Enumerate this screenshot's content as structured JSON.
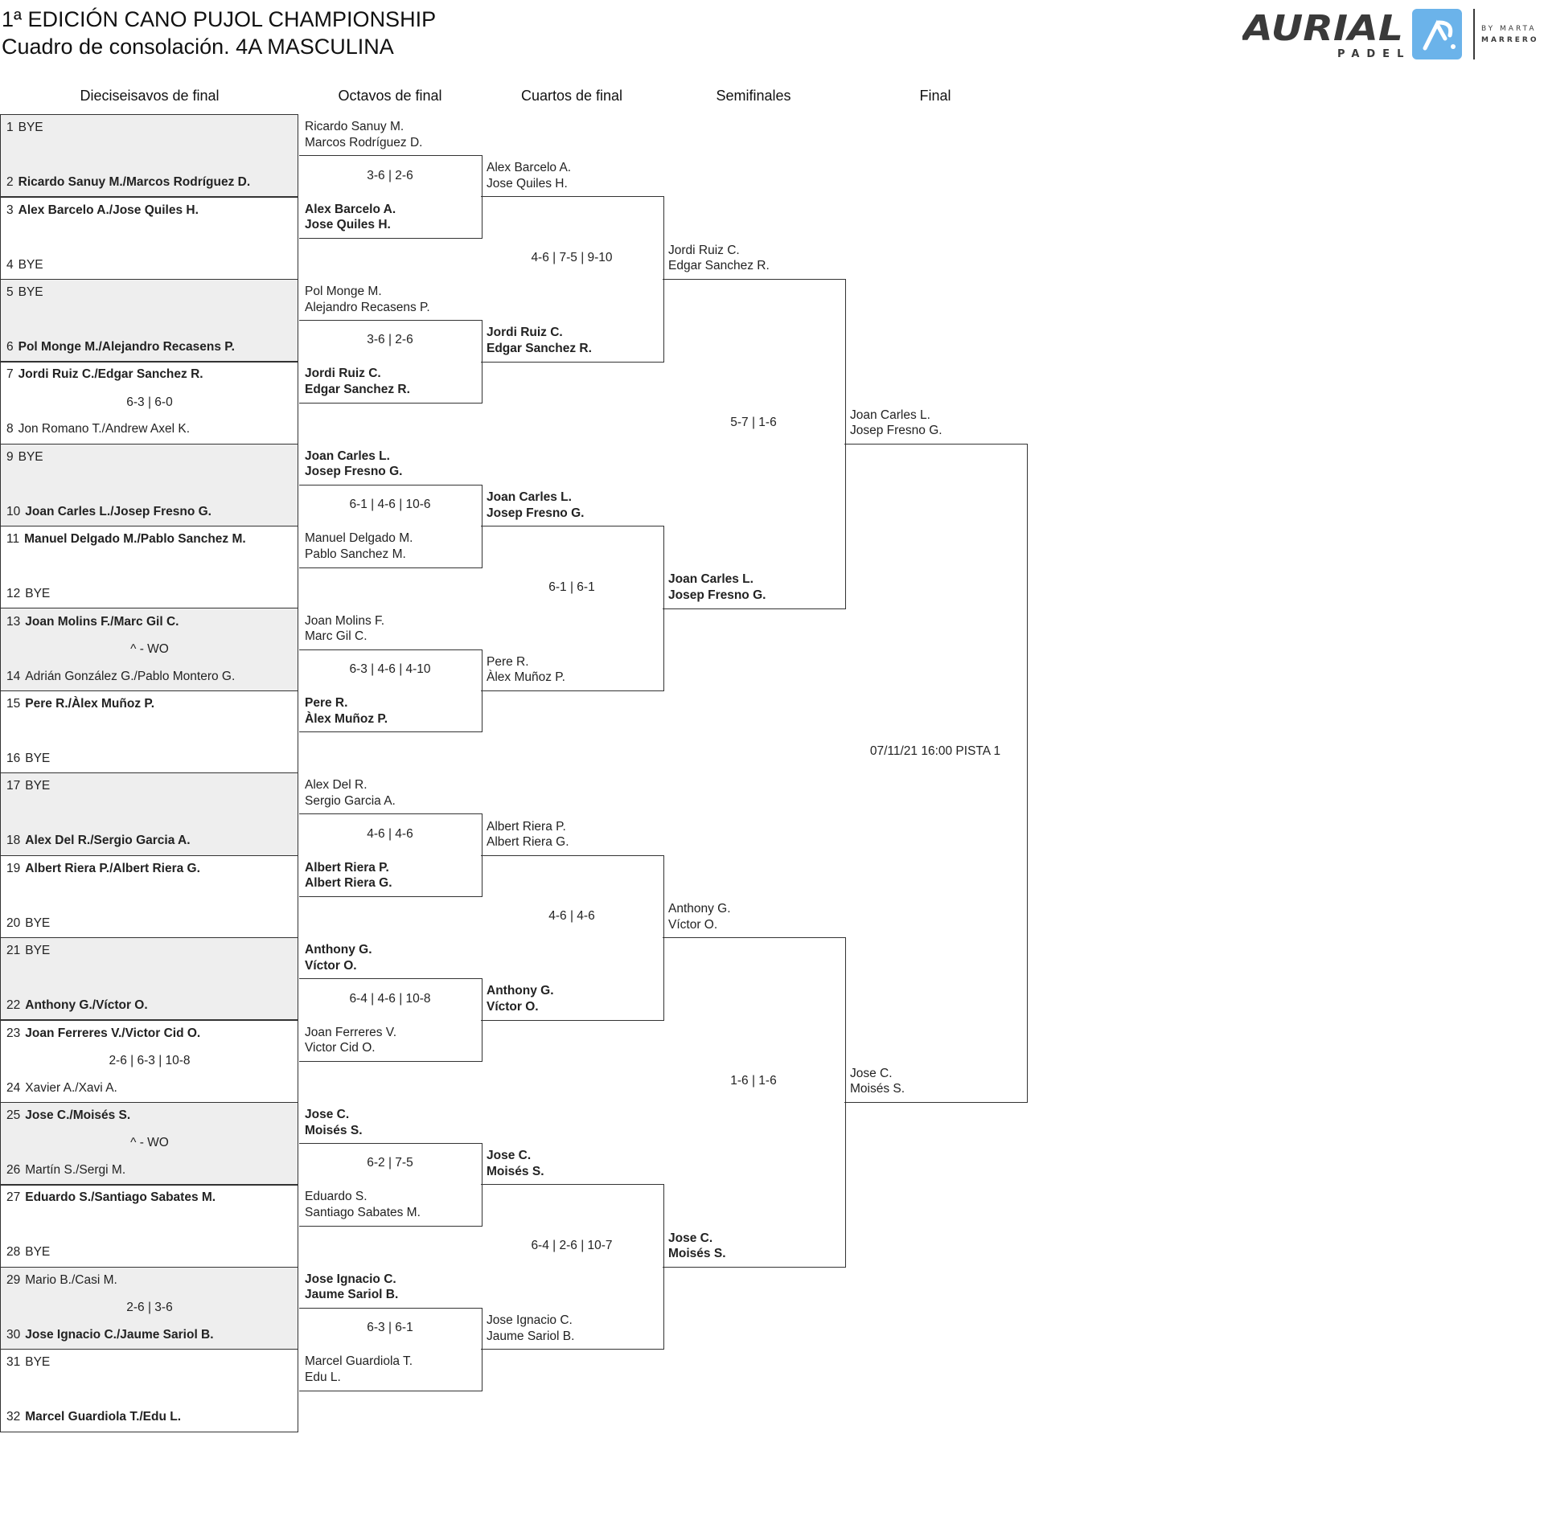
{
  "header": {
    "title": "1ª EDICIÓN CANO PUJOL CHAMPIONSHIP",
    "subtitle": "Cuadro de consolación. 4A MASCULINA"
  },
  "logo": {
    "brand": "AURIAL",
    "sub": "PADEL",
    "tagline1": "BY MARTA",
    "tagline2": "MARRERO",
    "accent": "#6bb3ea"
  },
  "rounds": [
    "Dieciseisavos de final",
    "Octavos de final",
    "Cuartos de final",
    "Semifinales",
    "Final"
  ],
  "round1": [
    {
      "n1": "1",
      "t1": "BYE",
      "w1": false,
      "n2": "2",
      "t2": "Ricardo Sanuy M./Marcos Rodríguez D.",
      "w2": true,
      "score": ""
    },
    {
      "n1": "3",
      "t1": "Alex Barcelo A./Jose Quiles H.",
      "w1": true,
      "n2": "4",
      "t2": "BYE",
      "w2": false,
      "score": ""
    },
    {
      "n1": "5",
      "t1": "BYE",
      "w1": false,
      "n2": "6",
      "t2": "Pol Monge M./Alejandro Recasens P.",
      "w2": true,
      "score": ""
    },
    {
      "n1": "7",
      "t1": "Jordi Ruiz C./Edgar Sanchez R.",
      "w1": true,
      "n2": "8",
      "t2": "Jon Romano T./Andrew Axel K.",
      "w2": false,
      "score": "6-3 | 6-0"
    },
    {
      "n1": "9",
      "t1": "BYE",
      "w1": false,
      "n2": "10",
      "t2": "Joan Carles L./Josep Fresno G.",
      "w2": true,
      "score": ""
    },
    {
      "n1": "11",
      "t1": "Manuel Delgado M./Pablo Sanchez M.",
      "w1": true,
      "n2": "12",
      "t2": "BYE",
      "w2": false,
      "score": ""
    },
    {
      "n1": "13",
      "t1": "Joan Molins F./Marc Gil C.",
      "w1": true,
      "n2": "14",
      "t2": "Adrián González G./Pablo Montero G.",
      "w2": false,
      "score": "^ - WO"
    },
    {
      "n1": "15",
      "t1": "Pere R./Àlex Muñoz P.",
      "w1": true,
      "n2": "16",
      "t2": "BYE",
      "w2": false,
      "score": ""
    },
    {
      "n1": "17",
      "t1": "BYE",
      "w1": false,
      "n2": "18",
      "t2": "Alex Del R./Sergio Garcia A.",
      "w2": true,
      "score": ""
    },
    {
      "n1": "19",
      "t1": "Albert Riera P./Albert Riera G.",
      "w1": true,
      "n2": "20",
      "t2": "BYE",
      "w2": false,
      "score": ""
    },
    {
      "n1": "21",
      "t1": "BYE",
      "w1": false,
      "n2": "22",
      "t2": "Anthony G./Víctor O.",
      "w2": true,
      "score": ""
    },
    {
      "n1": "23",
      "t1": "Joan Ferreres V./Victor Cid O.",
      "w1": true,
      "n2": "24",
      "t2": "Xavier A./Xavi A.",
      "w2": false,
      "score": "2-6 | 6-3 | 10-8"
    },
    {
      "n1": "25",
      "t1": "Jose C./Moisés S.",
      "w1": true,
      "n2": "26",
      "t2": "Martín S./Sergi M.",
      "w2": false,
      "score": "^ - WO"
    },
    {
      "n1": "27",
      "t1": "Eduardo S./Santiago Sabates M.",
      "w1": true,
      "n2": "28",
      "t2": "BYE",
      "w2": false,
      "score": ""
    },
    {
      "n1": "29",
      "t1": "Mario B./Casi M.",
      "w1": false,
      "n2": "30",
      "t2": "Jose Ignacio C./Jaume Sariol B.",
      "w2": true,
      "score": "2-6 | 3-6"
    },
    {
      "n1": "31",
      "t1": "BYE",
      "w1": false,
      "n2": "32",
      "t2": "Marcel Guardiola T./Edu L.",
      "w2": true,
      "score": ""
    }
  ],
  "later_rounds": [
    [
      {
        "top": [
          "Ricardo Sanuy M.",
          "Marcos Rodríguez D."
        ],
        "bottom": [
          "Alex Barcelo A.",
          "Jose Quiles H."
        ],
        "winner": "bottom",
        "score": "3-6 | 2-6"
      },
      {
        "top": [
          "Pol Monge M.",
          "Alejandro Recasens P."
        ],
        "bottom": [
          "Jordi Ruiz C.",
          "Edgar Sanchez R."
        ],
        "winner": "bottom",
        "score": "3-6 | 2-6"
      },
      {
        "top": [
          "Joan Carles L.",
          "Josep Fresno G."
        ],
        "bottom": [
          "Manuel Delgado M.",
          "Pablo Sanchez M."
        ],
        "winner": "top",
        "score": "6-1 | 4-6 | 10-6"
      },
      {
        "top": [
          "Joan Molins F.",
          "Marc Gil C."
        ],
        "bottom": [
          "Pere R.",
          "Àlex Muñoz P."
        ],
        "winner": "bottom",
        "score": "6-3 | 4-6 | 4-10"
      },
      {
        "top": [
          "Alex Del R.",
          "Sergio Garcia A."
        ],
        "bottom": [
          "Albert Riera P.",
          "Albert Riera G."
        ],
        "winner": "bottom",
        "score": "4-6 | 4-6"
      },
      {
        "top": [
          "Anthony G.",
          "Víctor O."
        ],
        "bottom": [
          "Joan Ferreres V.",
          "Victor Cid O."
        ],
        "winner": "top",
        "score": "6-4 | 4-6 | 10-8"
      },
      {
        "top": [
          "Jose C.",
          "Moisés S."
        ],
        "bottom": [
          "Eduardo S.",
          "Santiago Sabates M."
        ],
        "winner": "top",
        "score": "6-2 | 7-5"
      },
      {
        "top": [
          "Jose Ignacio C.",
          "Jaume Sariol B."
        ],
        "bottom": [
          "Marcel Guardiola T.",
          "Edu L."
        ],
        "winner": "top",
        "score": "6-3 | 6-1"
      }
    ],
    [
      {
        "top": [
          "Alex Barcelo A.",
          "Jose Quiles H."
        ],
        "bottom": [
          "Jordi Ruiz C.",
          "Edgar Sanchez R."
        ],
        "winner": "bottom",
        "score": "4-6 | 7-5 | 9-10"
      },
      {
        "top": [
          "Joan Carles L.",
          "Josep Fresno G."
        ],
        "bottom": [
          "Pere R.",
          "Àlex Muñoz P."
        ],
        "winner": "top",
        "score": "6-1 | 6-1"
      },
      {
        "top": [
          "Albert Riera P.",
          "Albert Riera G."
        ],
        "bottom": [
          "Anthony G.",
          "Víctor O."
        ],
        "winner": "bottom",
        "score": "4-6 | 4-6"
      },
      {
        "top": [
          "Jose C.",
          "Moisés S."
        ],
        "bottom": [
          "Jose Ignacio C.",
          "Jaume Sariol B."
        ],
        "winner": "top",
        "score": "6-4 | 2-6 | 10-7"
      }
    ],
    [
      {
        "top": [
          "Jordi Ruiz C.",
          "Edgar Sanchez R."
        ],
        "bottom": [
          "Joan Carles L.",
          "Josep Fresno G."
        ],
        "winner": "bottom",
        "score": "5-7 | 1-6"
      },
      {
        "top": [
          "Anthony G.",
          "Víctor O."
        ],
        "bottom": [
          "Jose C.",
          "Moisés S."
        ],
        "winner": "bottom",
        "score": "1-6 | 1-6"
      }
    ],
    [
      {
        "top": [
          "Joan Carles L.",
          "Josep Fresno G."
        ],
        "bottom": [
          "Jose C.",
          "Moisés S."
        ],
        "winner": "",
        "score": "07/11/21 16:00 PISTA 1"
      }
    ]
  ]
}
